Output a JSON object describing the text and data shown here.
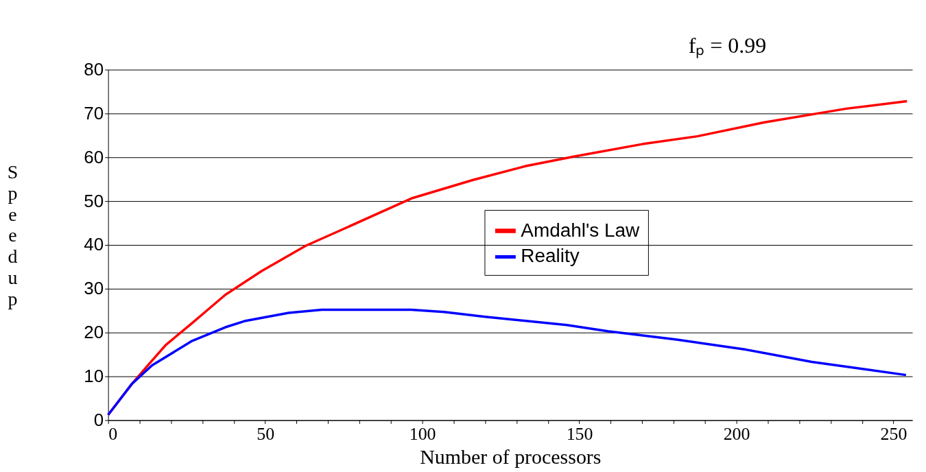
{
  "chart_data": {
    "type": "line",
    "xlabel": "Number of processors",
    "ylabel": "Speedup",
    "annotations": [
      "fₚ = 0.99"
    ],
    "xlim": [
      0,
      256
    ],
    "ylim": [
      0,
      80
    ],
    "xticks": [
      0,
      {
        "value": 10,
        "label": null
      },
      {
        "value": 20,
        "label": null
      },
      {
        "value": 30,
        "label": null
      },
      {
        "value": 40,
        "label": null
      },
      50,
      {
        "value": 60,
        "label": null
      },
      {
        "value": 70,
        "label": null
      },
      {
        "value": 80,
        "label": null
      },
      {
        "value": 90,
        "label": null
      },
      100,
      {
        "value": 110,
        "label": null
      },
      {
        "value": 120,
        "label": null
      },
      {
        "value": 130,
        "label": null
      },
      {
        "value": 140,
        "label": null
      },
      150,
      {
        "value": 160,
        "label": null
      },
      {
        "value": 170,
        "label": null
      },
      {
        "value": 180,
        "label": null
      },
      {
        "value": 190,
        "label": null
      },
      200,
      {
        "value": 210,
        "label": null
      },
      {
        "value": 220,
        "label": null
      },
      {
        "value": 230,
        "label": null
      },
      {
        "value": 240,
        "label": null
      },
      250
    ],
    "yticks": [
      0,
      10,
      20,
      30,
      40,
      50,
      60,
      70,
      80
    ],
    "grid": "y",
    "legend": "center right",
    "marker": "none",
    "line_style": "solid",
    "series": [
      {
        "name": "Amdahl's Law",
        "color": "#ff0000",
        "x": [
          0,
          7.6,
          12.4,
          18.4,
          26.5,
          31.4,
          37.3,
          48.8,
          62.9,
          74.8,
          96.5,
          116,
          133,
          148.5,
          170,
          187.6,
          209,
          235,
          254.3
        ],
        "values": [
          1.2,
          8.3,
          12.3,
          17.2,
          22,
          25,
          28.6,
          34,
          39.8,
          43.6,
          50.6,
          54.8,
          58,
          60.2,
          63,
          64.8,
          68,
          71.1,
          72.8
        ]
      },
      {
        "name": "Reality",
        "color": "#0000ff",
        "x": [
          0,
          7.6,
          14,
          26.5,
          37.3,
          43.4,
          57.5,
          68,
          96.5,
          107,
          120,
          146,
          159,
          181,
          203,
          224,
          254
        ],
        "values": [
          1.2,
          8.3,
          12.5,
          18,
          21.2,
          22.6,
          24.5,
          25.2,
          25.2,
          24.7,
          23.6,
          21.7,
          20.3,
          18.4,
          16.1,
          13.3,
          10.3
        ]
      }
    ]
  }
}
